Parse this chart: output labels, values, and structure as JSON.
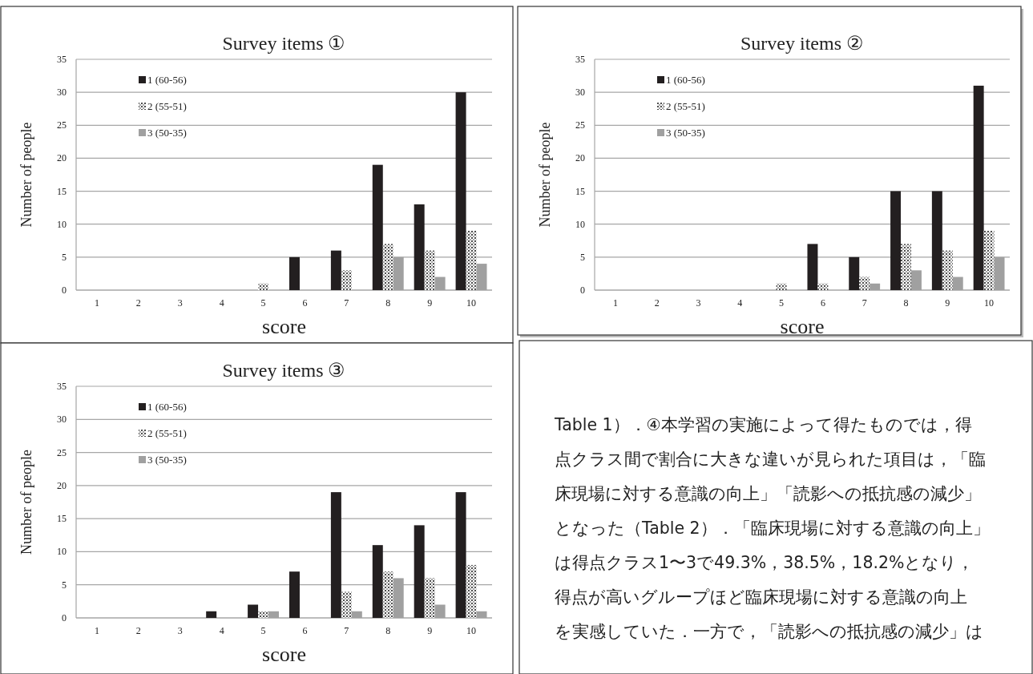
{
  "chart_data": [
    {
      "type": "bar",
      "title": "Survey items ①",
      "xlabel": "score",
      "ylabel": "Number of people",
      "categories": [
        "1",
        "2",
        "3",
        "4",
        "5",
        "6",
        "7",
        "8",
        "9",
        "10"
      ],
      "ylim": [
        0,
        35
      ],
      "yticks": [
        0,
        5,
        10,
        15,
        20,
        25,
        30,
        35
      ],
      "grid": "y",
      "legend": "top left",
      "series": [
        {
          "name": "1 (60-56)",
          "color": "#231f20",
          "values": [
            0,
            0,
            0,
            0,
            0,
            5,
            6,
            19,
            13,
            30
          ]
        },
        {
          "name": "2 (55-51)",
          "color": "#3a3a3a",
          "values": [
            0,
            0,
            0,
            0,
            1,
            0,
            3,
            7,
            6,
            9
          ]
        },
        {
          "name": "3 (50-35)",
          "color": "#a0a0a0",
          "values": [
            0,
            0,
            0,
            0,
            0,
            0,
            0,
            5,
            2,
            4
          ]
        }
      ]
    },
    {
      "type": "bar",
      "title": "Survey items ②",
      "xlabel": "score",
      "ylabel": "Number of people",
      "categories": [
        "1",
        "2",
        "3",
        "4",
        "5",
        "6",
        "7",
        "8",
        "9",
        "10"
      ],
      "ylim": [
        0,
        35
      ],
      "yticks": [
        0,
        5,
        10,
        15,
        20,
        25,
        30,
        35
      ],
      "grid": "y",
      "legend": "top left",
      "series": [
        {
          "name": "1 (60-56)",
          "color": "#231f20",
          "values": [
            0,
            0,
            0,
            0,
            0,
            7,
            5,
            15,
            15,
            31
          ]
        },
        {
          "name": "2 (55-51)",
          "color": "#3a3a3a",
          "values": [
            0,
            0,
            0,
            0,
            1,
            1,
            2,
            7,
            6,
            9
          ]
        },
        {
          "name": "3 (50-35)",
          "color": "#a0a0a0",
          "values": [
            0,
            0,
            0,
            0,
            0,
            0,
            1,
            3,
            2,
            5
          ]
        }
      ]
    },
    {
      "type": "bar",
      "title": "Survey items ③",
      "xlabel": "score",
      "ylabel": "Number of people",
      "categories": [
        "1",
        "2",
        "3",
        "4",
        "5",
        "6",
        "7",
        "8",
        "9",
        "10"
      ],
      "ylim": [
        0,
        35
      ],
      "yticks": [
        0,
        5,
        10,
        15,
        20,
        25,
        30,
        35
      ],
      "grid": "y",
      "legend": "top left",
      "series": [
        {
          "name": "1 (60-56)",
          "color": "#231f20",
          "values": [
            0,
            0,
            0,
            1,
            2,
            7,
            19,
            11,
            14,
            19
          ]
        },
        {
          "name": "2 (55-51)",
          "color": "#3a3a3a",
          "values": [
            0,
            0,
            0,
            0,
            1,
            0,
            4,
            7,
            6,
            8
          ]
        },
        {
          "name": "3 (50-35)",
          "color": "#a0a0a0",
          "values": [
            0,
            0,
            0,
            0,
            1,
            0,
            1,
            6,
            2,
            1
          ]
        }
      ]
    },
    {
      "type": "other",
      "annotations": [
        "Table 1）．④本学習の実施によって得たものでは，得",
        "点クラス間で割合に大きな違いが見られた項目は，「臨",
        "床現場に対する意識の向上」「読影への抵抗感の減少」",
        "となった（Table 2）．「臨床現場に対する意識の向上」",
        "は得点クラス1〜3で49.3%，38.5%，18.2%となり，",
        "得点が高いグループほど臨床現場に対する意識の向上",
        "を実感していた．一方で，「読影への抵抗感の減少」は"
      ]
    }
  ]
}
